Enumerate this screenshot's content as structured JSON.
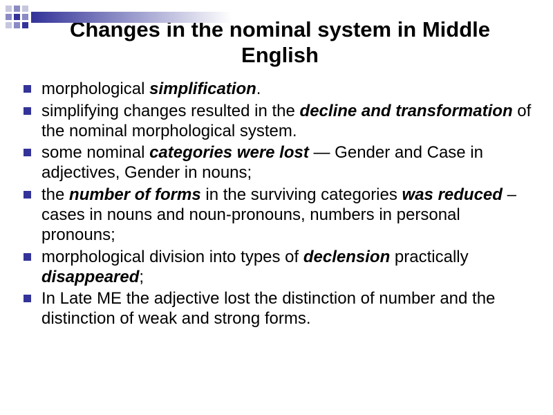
{
  "colors": {
    "bullet": "#333399",
    "square_light": "#c6c6de",
    "square_mid": "#8a8ac4",
    "square_dark": "#333399",
    "bar_gradient_start": "#333399",
    "bar_gradient_end": "#ffffff",
    "text": "#000000"
  },
  "fonts": {
    "title_size": 31,
    "body_size": 24
  },
  "title": "Changes in the nominal system in Middle English",
  "bullets": [
    "morphological <b><i>simplification</i></b>.",
    "simplifying changes resulted in the <b><i>decline and transformation</i></b> of the nominal morphological system.",
    "some nominal <b><i>categories were lost</i></b> — Gender and Case in adjectives, Gender in nouns;",
    "the <b><i>number of forms</i></b> in the surviving categories <b><i>was reduced</i></b> – cases in nouns and noun-pronouns, numbers in personal pronouns;",
    "morphological division into types of <b><i>declension</i></b> practically <b><i>disappeared</i></b>;",
    "In Late ME the adjective lost the distinction of number and the distinction of weak and strong forms."
  ]
}
